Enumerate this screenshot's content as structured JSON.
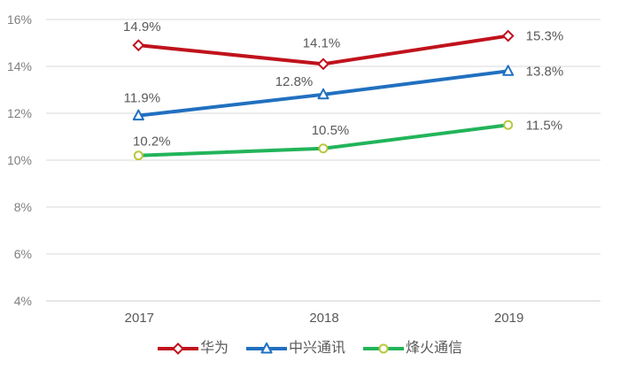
{
  "chart_data": {
    "type": "line",
    "title": "",
    "xlabel": "",
    "ylabel": "",
    "categories": [
      "2017",
      "2018",
      "2019"
    ],
    "series": [
      {
        "name": "华为",
        "values": [
          14.9,
          14.1,
          15.3
        ],
        "data_labels": [
          "14.9%",
          "14.1%",
          "15.3%"
        ],
        "color": "#c0121c",
        "marker": "diamond",
        "marker_color": "#c0121c"
      },
      {
        "name": "中兴通讯",
        "values": [
          11.9,
          12.8,
          13.8
        ],
        "data_labels": [
          "11.9%",
          "12.8%",
          "13.8%"
        ],
        "color": "#2170c0",
        "marker": "triangle",
        "marker_color": "#2170c0"
      },
      {
        "name": "烽火通信",
        "values": [
          10.2,
          10.5,
          11.5
        ],
        "data_labels": [
          "10.2%",
          "10.5%",
          "11.5%"
        ],
        "color": "#22b45a",
        "marker": "circle",
        "marker_color": "#b8c83e"
      }
    ],
    "ylim": [
      4,
      16
    ],
    "ytick_step": 2,
    "ytick_labels": [
      "4%",
      "6%",
      "8%",
      "10%",
      "12%",
      "14%",
      "16%"
    ],
    "grid": true,
    "legend_position": "bottom",
    "styles": {
      "grid_color": "#d9d9d9",
      "axis_color": "#cccccc",
      "tick_label_color": "#7f7f7f",
      "x_label_color": "#595959",
      "data_label_color": "#595959",
      "legend_text_color": "#595959",
      "background": "#ffffff"
    }
  }
}
